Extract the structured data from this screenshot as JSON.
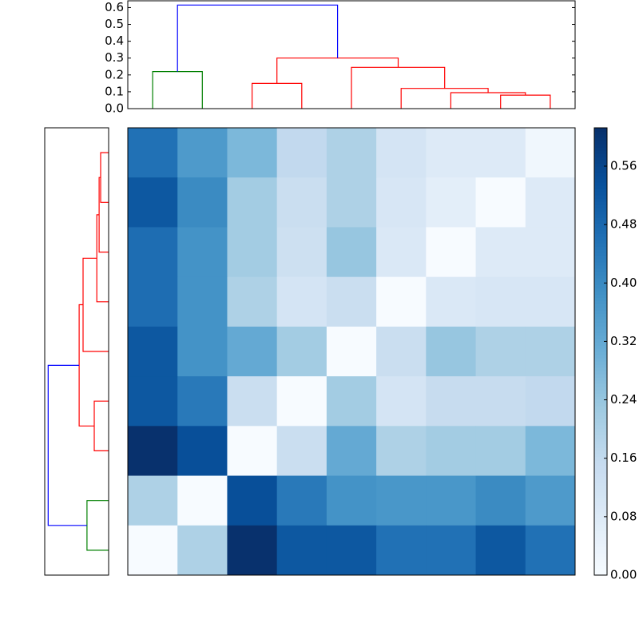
{
  "chart_data": [
    {
      "type": "dendrogram",
      "orientation": "top",
      "xlim": [
        0,
        90
      ],
      "ylim": [
        0,
        0.64
      ],
      "yticks": [
        {
          "value": 0,
          "label": "0.0"
        },
        0.1,
        0.2,
        0.3,
        0.4,
        0.5,
        0.6
      ],
      "links": [
        {
          "color": "#008000",
          "x": [
            5,
            5,
            15,
            15
          ],
          "y": [
            0,
            0.22,
            0.22,
            0
          ]
        },
        {
          "color": "#ff0000",
          "x": [
            25,
            25,
            35,
            35
          ],
          "y": [
            0,
            0.15,
            0.15,
            0
          ]
        },
        {
          "color": "#ff0000",
          "x": [
            75,
            75,
            85,
            85
          ],
          "y": [
            0,
            0.08,
            0.08,
            0
          ]
        },
        {
          "color": "#ff0000",
          "x": [
            65,
            65,
            80,
            80
          ],
          "y": [
            0,
            0.095,
            0.095,
            0.08
          ]
        },
        {
          "color": "#ff0000",
          "x": [
            55,
            55,
            72.5,
            72.5
          ],
          "y": [
            0,
            0.12,
            0.12,
            0.095
          ]
        },
        {
          "color": "#ff0000",
          "x": [
            45,
            45,
            63.75,
            63.75
          ],
          "y": [
            0,
            0.245,
            0.245,
            0.12
          ]
        },
        {
          "color": "#ff0000",
          "x": [
            30,
            30,
            54.4,
            54.4
          ],
          "y": [
            0.15,
            0.3,
            0.3,
            0.245
          ]
        },
        {
          "color": "#0000ff",
          "x": [
            10,
            10,
            42.2,
            42.2
          ],
          "y": [
            0.22,
            0.615,
            0.615,
            0.3
          ]
        }
      ]
    },
    {
      "type": "dendrogram",
      "orientation": "left",
      "xlim": [
        0,
        0.65
      ],
      "ylim": [
        0,
        90
      ],
      "links": [
        {
          "color": "#ff0000",
          "x": [
            5,
            5,
            15,
            15
          ],
          "y": [
            0,
            0.081,
            0.081,
            0
          ]
        },
        {
          "color": "#ff0000",
          "x": [
            10,
            10,
            25,
            25
          ],
          "y": [
            0.081,
            0.097,
            0.097,
            0
          ]
        },
        {
          "color": "#ff0000",
          "x": [
            17.5,
            17.5,
            35,
            35
          ],
          "y": [
            0.097,
            0.12,
            0.12,
            0
          ]
        },
        {
          "color": "#ff0000",
          "x": [
            26.25,
            26.25,
            45,
            45
          ],
          "y": [
            0.12,
            0.26,
            0.26,
            0
          ]
        },
        {
          "color": "#ff0000",
          "x": [
            55,
            55,
            65,
            65
          ],
          "y": [
            0,
            0.146,
            0.146,
            0
          ]
        },
        {
          "color": "#ff0000",
          "x": [
            35.6,
            35.6,
            60,
            60
          ],
          "y": [
            0.26,
            0.3,
            0.3,
            0.146
          ]
        },
        {
          "color": "#008000",
          "x": [
            75,
            75,
            85,
            85
          ],
          "y": [
            0,
            0.22,
            0.22,
            0
          ]
        },
        {
          "color": "#0000ff",
          "x": [
            47.8,
            47.8,
            80,
            80
          ],
          "y": [
            0.3,
            0.615,
            0.615,
            0.22
          ]
        }
      ]
    },
    {
      "type": "heatmap",
      "values": [
        [
          0.46,
          0.36,
          0.28,
          0.16,
          0.2,
          0.11,
          0.08,
          0.08,
          0.02
        ],
        [
          0.52,
          0.4,
          0.22,
          0.14,
          0.2,
          0.1,
          0.06,
          0.0,
          0.08
        ],
        [
          0.47,
          0.38,
          0.22,
          0.13,
          0.24,
          0.09,
          0.0,
          0.08,
          0.08
        ],
        [
          0.47,
          0.38,
          0.2,
          0.11,
          0.14,
          0.0,
          0.09,
          0.1,
          0.1
        ],
        [
          0.52,
          0.38,
          0.32,
          0.22,
          0.0,
          0.14,
          0.24,
          0.2,
          0.2
        ],
        [
          0.52,
          0.44,
          0.14,
          0.0,
          0.22,
          0.11,
          0.15,
          0.15,
          0.16
        ],
        [
          0.61,
          0.54,
          0.0,
          0.14,
          0.32,
          0.2,
          0.22,
          0.22,
          0.28
        ],
        [
          0.2,
          0.0,
          0.54,
          0.44,
          0.38,
          0.37,
          0.37,
          0.4,
          0.36
        ],
        [
          0.0,
          0.2,
          0.61,
          0.52,
          0.52,
          0.46,
          0.46,
          0.52,
          0.46
        ]
      ],
      "clim": [
        0,
        0.6125
      ],
      "colormap": [
        "#f7fbff",
        "#deebf7",
        "#c6dbef",
        "#9ecae1",
        "#6baed6",
        "#4292c6",
        "#2171b5",
        "#08519c",
        "#08306b"
      ],
      "cticks": [
        {
          "value": 0,
          "label": "0.00"
        },
        0.08,
        0.16,
        0.24,
        0.32,
        {
          "value": 0.4,
          "label": "0.40"
        },
        0.48,
        0.56
      ]
    }
  ]
}
